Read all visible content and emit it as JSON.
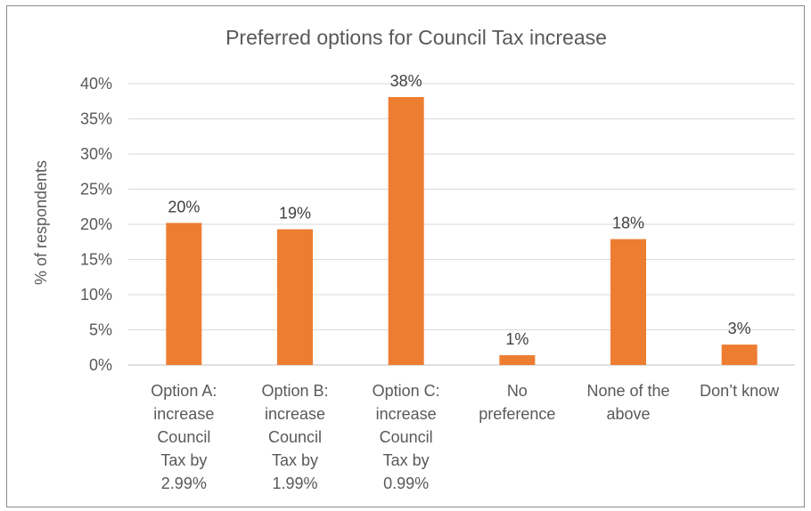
{
  "chart_data": {
    "type": "bar",
    "title": "Preferred options for Council Tax increase",
    "xlabel": "",
    "ylabel": "% of respondents",
    "ylim": [
      0,
      40
    ],
    "yticks": [
      "0%",
      "5%",
      "10%",
      "15%",
      "20%",
      "25%",
      "30%",
      "35%",
      "40%"
    ],
    "grid": true,
    "legend": "none",
    "bar_color": "#ED7D31",
    "categories": [
      [
        "Option A:",
        "increase",
        "Council",
        "Tax by",
        "2.99%"
      ],
      [
        "Option B:",
        "increase",
        "Council",
        "Tax by",
        "1.99%"
      ],
      [
        "Option C:",
        "increase",
        "Council",
        "Tax by",
        "0.99%"
      ],
      [
        "No",
        "preference"
      ],
      [
        "None of the",
        "above"
      ],
      [
        "Don’t know"
      ]
    ],
    "values": [
      20.2,
      19.3,
      38.1,
      1.4,
      17.9,
      2.9
    ],
    "data_labels": [
      "20%",
      "19%",
      "38%",
      "1%",
      "18%",
      "3%"
    ]
  }
}
